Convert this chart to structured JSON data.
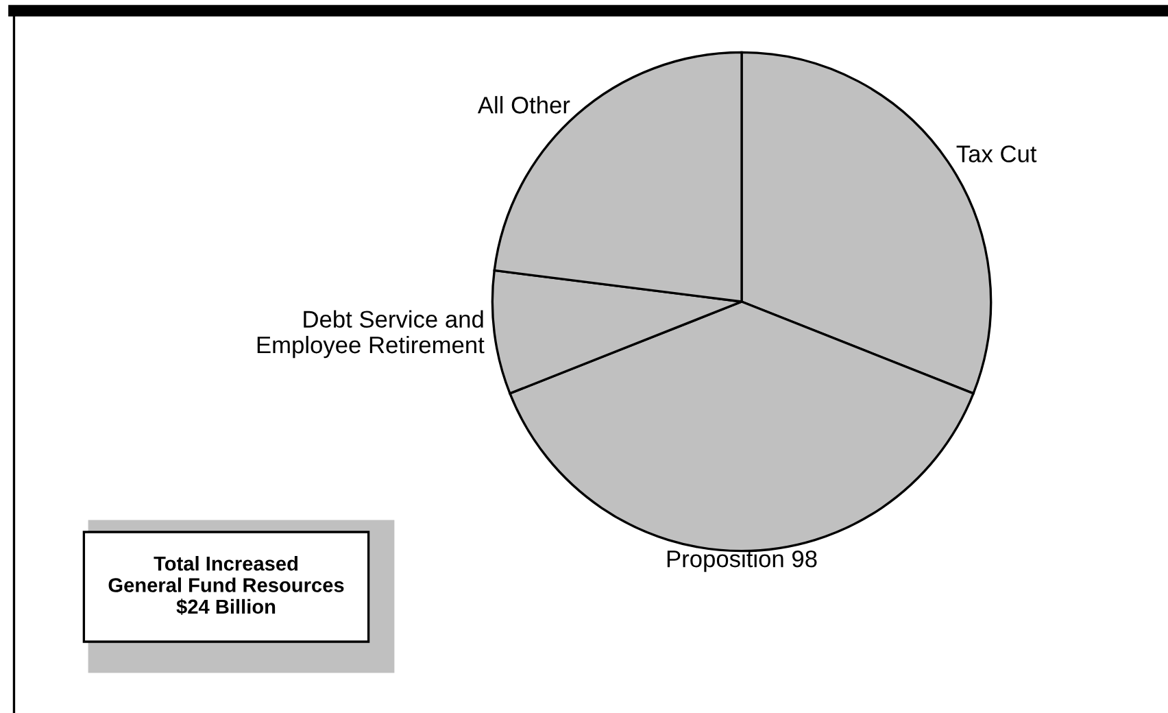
{
  "chart_data": {
    "type": "pie",
    "categories": [
      "Tax Cut",
      "Proposition 98",
      "Debt Service and\nEmployee Retirement",
      "All Other"
    ],
    "values": [
      31,
      38,
      8,
      23
    ],
    "colors": [
      "#c0c0c0",
      "#c0c0c0",
      "#c0c0c0",
      "#c0c0c0"
    ],
    "annotations": [
      "Total Increased\nGeneral Fund Resources\n$24 Billion"
    ]
  }
}
